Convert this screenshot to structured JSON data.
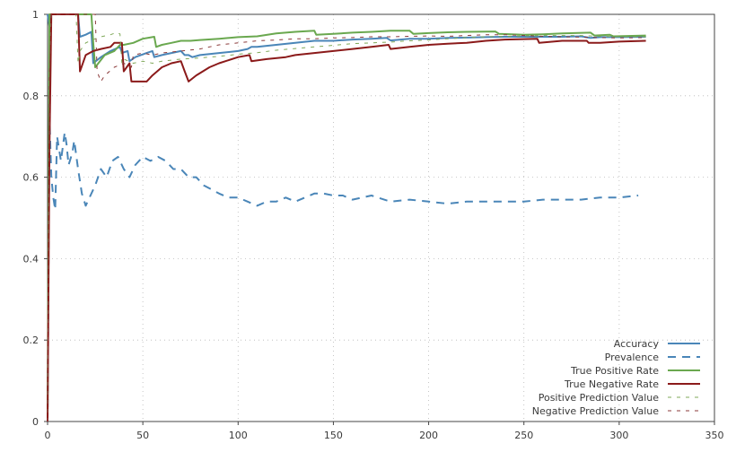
{
  "chart_data": {
    "type": "line",
    "title": "",
    "xlabel": "",
    "ylabel": "",
    "xlim": [
      0,
      350
    ],
    "ylim": [
      0,
      1
    ],
    "grid": true,
    "legend_position": "bottom-right",
    "x_ticks": [
      "0",
      "50",
      "100",
      "150",
      "200",
      "250",
      "300",
      "350"
    ],
    "y_ticks": [
      "0",
      "0.2",
      "0.4",
      "0.6",
      "0.8",
      "1"
    ],
    "series": [
      {
        "name": "Accuracy",
        "color": "#4a86b8",
        "dash": "solid",
        "x": [
          0,
          1,
          2,
          4,
          8,
          12,
          16,
          17,
          20,
          23,
          24,
          28,
          33,
          38,
          39,
          42,
          43,
          46,
          52,
          55,
          56,
          60,
          65,
          70,
          72,
          74,
          76,
          80,
          90,
          100,
          105,
          107,
          110,
          120,
          130,
          140,
          150,
          160,
          170,
          178,
          180,
          190,
          200,
          210,
          220,
          230,
          240,
          250,
          260,
          270,
          280,
          285,
          290,
          300,
          314
        ],
        "y": [
          1.0,
          0.97,
          1.0,
          1.0,
          1.0,
          1.0,
          1.0,
          0.945,
          0.95,
          0.957,
          0.88,
          0.895,
          0.91,
          0.92,
          0.905,
          0.91,
          0.885,
          0.895,
          0.905,
          0.91,
          0.895,
          0.9,
          0.905,
          0.91,
          0.9,
          0.9,
          0.895,
          0.9,
          0.905,
          0.91,
          0.915,
          0.92,
          0.92,
          0.925,
          0.93,
          0.935,
          0.935,
          0.938,
          0.94,
          0.942,
          0.936,
          0.94,
          0.94,
          0.942,
          0.943,
          0.944,
          0.945,
          0.945,
          0.945,
          0.945,
          0.946,
          0.942,
          0.944,
          0.944,
          0.945
        ]
      },
      {
        "name": "Prevalence",
        "color": "#4a86b8",
        "dash": "long",
        "x": [
          0,
          1,
          2,
          3,
          4,
          5,
          7,
          9,
          10,
          11,
          13,
          14,
          16,
          18,
          20,
          22,
          25,
          28,
          31,
          34,
          37,
          40,
          43,
          46,
          50,
          54,
          58,
          62,
          66,
          70,
          74,
          78,
          82,
          86,
          90,
          95,
          100,
          105,
          110,
          115,
          120,
          125,
          130,
          135,
          140,
          145,
          150,
          155,
          160,
          170,
          180,
          190,
          200,
          210,
          220,
          230,
          240,
          250,
          260,
          270,
          280,
          290,
          300,
          310
        ],
        "y": [
          0.0,
          0.75,
          0.6,
          0.55,
          0.52,
          0.7,
          0.64,
          0.71,
          0.68,
          0.63,
          0.66,
          0.69,
          0.62,
          0.56,
          0.53,
          0.55,
          0.58,
          0.62,
          0.6,
          0.64,
          0.65,
          0.62,
          0.6,
          0.63,
          0.65,
          0.64,
          0.65,
          0.64,
          0.62,
          0.62,
          0.6,
          0.6,
          0.58,
          0.57,
          0.56,
          0.55,
          0.55,
          0.54,
          0.53,
          0.54,
          0.54,
          0.55,
          0.54,
          0.55,
          0.56,
          0.56,
          0.555,
          0.555,
          0.545,
          0.555,
          0.54,
          0.545,
          0.54,
          0.535,
          0.54,
          0.54,
          0.54,
          0.54,
          0.545,
          0.545,
          0.545,
          0.55,
          0.55,
          0.555
        ]
      },
      {
        "name": "True Positive Rate",
        "color": "#6aa84f",
        "dash": "solid",
        "x": [
          0,
          1,
          2,
          5,
          10,
          15,
          20,
          23,
          24,
          25,
          30,
          35,
          38,
          40,
          45,
          50,
          56,
          57,
          60,
          65,
          70,
          75,
          80,
          90,
          100,
          110,
          120,
          130,
          140,
          141,
          150,
          160,
          170,
          180,
          190,
          192,
          200,
          210,
          220,
          235,
          237,
          250,
          260,
          270,
          285,
          287,
          295,
          297,
          314
        ],
        "y": [
          0.0,
          1.0,
          1.0,
          1.0,
          1.0,
          1.0,
          1.0,
          1.0,
          0.93,
          0.87,
          0.9,
          0.91,
          0.925,
          0.925,
          0.93,
          0.94,
          0.945,
          0.92,
          0.925,
          0.93,
          0.935,
          0.935,
          0.937,
          0.94,
          0.944,
          0.946,
          0.953,
          0.957,
          0.96,
          0.95,
          0.952,
          0.955,
          0.957,
          0.96,
          0.96,
          0.952,
          0.954,
          0.956,
          0.957,
          0.958,
          0.952,
          0.95,
          0.951,
          0.953,
          0.955,
          0.948,
          0.95,
          0.946,
          0.948
        ]
      },
      {
        "name": "True Negative Rate",
        "color": "#8b1a1a",
        "dash": "solid",
        "x": [
          0,
          1,
          2,
          4,
          10,
          16,
          17,
          20,
          24,
          28,
          33,
          35,
          39,
          40,
          43,
          44,
          48,
          52,
          55,
          60,
          65,
          70,
          72,
          74,
          78,
          85,
          90,
          100,
          106,
          107,
          115,
          125,
          130,
          140,
          150,
          160,
          170,
          179,
          180,
          190,
          200,
          210,
          220,
          230,
          240,
          257,
          258,
          270,
          283,
          284,
          290,
          300,
          314
        ],
        "y": [
          0.0,
          0.67,
          1.0,
          1.0,
          1.0,
          1.0,
          0.86,
          0.9,
          0.91,
          0.915,
          0.92,
          0.93,
          0.93,
          0.86,
          0.88,
          0.835,
          0.835,
          0.835,
          0.85,
          0.87,
          0.88,
          0.885,
          0.86,
          0.835,
          0.85,
          0.87,
          0.88,
          0.895,
          0.9,
          0.885,
          0.89,
          0.895,
          0.9,
          0.905,
          0.91,
          0.915,
          0.92,
          0.925,
          0.915,
          0.92,
          0.925,
          0.928,
          0.93,
          0.935,
          0.938,
          0.94,
          0.93,
          0.935,
          0.935,
          0.93,
          0.93,
          0.933,
          0.935
        ]
      },
      {
        "name": "Positive Prediction Value",
        "color": "#7fa858",
        "dash": "short",
        "x": [
          0,
          1,
          2,
          5,
          10,
          15,
          16,
          17,
          20,
          25,
          28,
          33,
          36,
          38,
          39,
          40,
          45,
          50,
          55,
          60,
          70,
          80,
          90,
          100,
          110,
          120,
          130,
          140,
          150,
          160,
          170,
          180,
          190,
          200,
          210,
          220,
          230,
          240,
          250,
          260,
          270,
          280,
          290,
          300,
          314
        ],
        "y": [
          0.0,
          0.9,
          1.0,
          1.0,
          1.0,
          1.0,
          0.88,
          0.91,
          0.93,
          0.94,
          0.945,
          0.95,
          0.955,
          0.952,
          0.88,
          0.89,
          0.88,
          0.885,
          0.88,
          0.885,
          0.89,
          0.893,
          0.897,
          0.902,
          0.906,
          0.912,
          0.916,
          0.92,
          0.924,
          0.928,
          0.93,
          0.932,
          0.935,
          0.937,
          0.94,
          0.943,
          0.945,
          0.946,
          0.947,
          0.948,
          0.948,
          0.948,
          0.946,
          0.945,
          0.945
        ]
      },
      {
        "name": "Negative Prediction Value",
        "color": "#8b3a3a",
        "dash": "short",
        "x": [
          0,
          1,
          2,
          5,
          10,
          15,
          20,
          25,
          26,
          28,
          30,
          35,
          40,
          44,
          45,
          50,
          55,
          60,
          70,
          80,
          90,
          100,
          110,
          120,
          130,
          140,
          150,
          160,
          170,
          180,
          190,
          200,
          210,
          220,
          230,
          240,
          250,
          260,
          270,
          280,
          290,
          300,
          314
        ],
        "y": [
          0.0,
          0.85,
          1.0,
          1.0,
          1.0,
          1.0,
          1.0,
          1.0,
          0.86,
          0.835,
          0.85,
          0.87,
          0.88,
          0.87,
          0.9,
          0.905,
          0.9,
          0.905,
          0.91,
          0.915,
          0.925,
          0.93,
          0.935,
          0.937,
          0.94,
          0.94,
          0.942,
          0.943,
          0.945,
          0.945,
          0.946,
          0.947,
          0.946,
          0.948,
          0.95,
          0.95,
          0.948,
          0.946,
          0.945,
          0.944,
          0.943,
          0.942,
          0.943
        ]
      }
    ]
  }
}
